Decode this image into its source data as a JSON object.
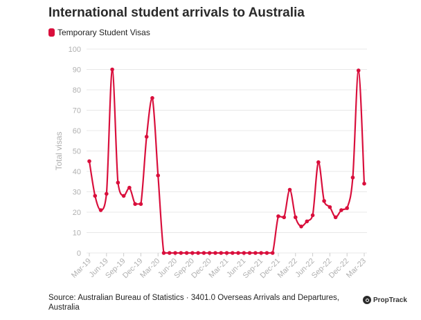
{
  "title": "International student arrivals to Australia",
  "source": "Source: Australian Bureau of Statistics · 3401.0 Overseas Arrivals and Departures, Australia",
  "brand": "PropTrack",
  "colors": {
    "series": "#d90f3c",
    "grid": "#e8e8e8",
    "axis_text": "#b0b0b0"
  },
  "chart_data": {
    "type": "line",
    "ylabel": "Total visas",
    "xlabel": "",
    "ylim": [
      0,
      100
    ],
    "yticks": [
      0,
      10,
      20,
      30,
      40,
      50,
      60,
      70,
      80,
      90,
      100
    ],
    "grid": true,
    "legend_position": "top-left",
    "x_tick_labels": [
      "Mar-19",
      "Jun-19",
      "Sep-19",
      "Dec-19",
      "Mar-20",
      "Jun-20",
      "Sep-20",
      "Dec-20",
      "Mar-21",
      "Jun-21",
      "Sep-21",
      "Dec-21",
      "Mar-22",
      "Jun-22",
      "Sep-22",
      "Dec-22",
      "Mar-23"
    ],
    "x": [
      "Mar-19",
      "Apr-19",
      "May-19",
      "Jun-19",
      "Jul-19",
      "Aug-19",
      "Sep-19",
      "Oct-19",
      "Nov-19",
      "Dec-19",
      "Jan-20",
      "Feb-20",
      "Mar-20",
      "Apr-20",
      "May-20",
      "Jun-20",
      "Jul-20",
      "Aug-20",
      "Sep-20",
      "Oct-20",
      "Nov-20",
      "Dec-20",
      "Jan-21",
      "Feb-21",
      "Mar-21",
      "Apr-21",
      "May-21",
      "Jun-21",
      "Jul-21",
      "Aug-21",
      "Sep-21",
      "Oct-21",
      "Nov-21",
      "Dec-21",
      "Jan-22",
      "Feb-22",
      "Mar-22",
      "Apr-22",
      "May-22",
      "Jun-22",
      "Jul-22",
      "Aug-22",
      "Sep-22",
      "Oct-22",
      "Nov-22",
      "Dec-22",
      "Jan-23",
      "Feb-23",
      "Mar-23"
    ],
    "series": [
      {
        "name": "Temporary Student Visas",
        "values": [
          45,
          28,
          21,
          29,
          90,
          34.5,
          28,
          32,
          24,
          24,
          57,
          76,
          38,
          0,
          0,
          0,
          0,
          0,
          0,
          0,
          0,
          0,
          0,
          0,
          0,
          0,
          0,
          0,
          0,
          0,
          0,
          0,
          0,
          18,
          17.5,
          31,
          17.5,
          13,
          15.5,
          18.5,
          44.5,
          25.5,
          22.5,
          17.5,
          21,
          22,
          37,
          89.5,
          34
        ]
      }
    ]
  }
}
